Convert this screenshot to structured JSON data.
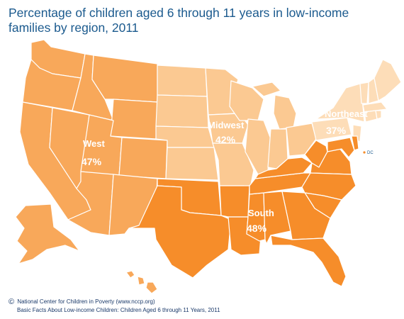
{
  "title": "Percentage of children aged 6 through 11 years in low-income families by region, 2011",
  "map": {
    "regions": [
      {
        "name": "West",
        "value": "47%",
        "color": "#f8a85a"
      },
      {
        "name": "Midwest",
        "value": "42%",
        "color": "#fbc992"
      },
      {
        "name": "Northeast",
        "value": "37%",
        "color": "#fdddb8"
      },
      {
        "name": "South",
        "value": "48%",
        "color": "#f68d2a"
      }
    ],
    "border_color": "#ffffff",
    "dc_label": "DC"
  },
  "footer": {
    "copyright_symbol": "©",
    "line1": "National Center for Children in Poverty (www.nccp.org)",
    "line2": "Basic Facts About Low-income Children: Children Aged 6 through 11 Years, 2011"
  }
}
